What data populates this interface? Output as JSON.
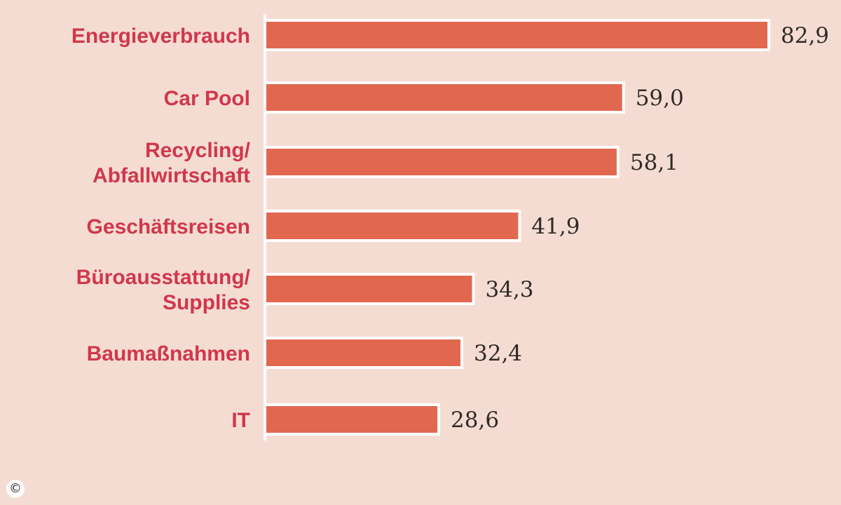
{
  "chart_data": {
    "type": "bar",
    "orientation": "horizontal",
    "categories": [
      [
        "Energieverbrauch"
      ],
      [
        "Car Pool"
      ],
      [
        "Recycling/",
        "Abfallwirtschaft"
      ],
      [
        "Geschäftsreisen"
      ],
      [
        "Büroausstattung/",
        "Supplies"
      ],
      [
        "Baumaßnahmen"
      ],
      [
        "IT"
      ]
    ],
    "values": [
      82.9,
      59.0,
      58.1,
      41.9,
      34.3,
      32.4,
      28.6
    ],
    "value_labels": [
      "82,9",
      "59,0",
      "58,1",
      "41,9",
      "34,3",
      "32,4",
      "28,6"
    ],
    "xlim": [
      0,
      82.9
    ],
    "grid": false,
    "colors": {
      "bar": "#e1684f",
      "bar_outline": "#ffffff",
      "axis": "#ffffff",
      "category_text": "#d0374b",
      "value_text": "#2f2a28",
      "background": "#f5dcd2"
    }
  },
  "footer": {
    "copyright_symbol": "©"
  }
}
